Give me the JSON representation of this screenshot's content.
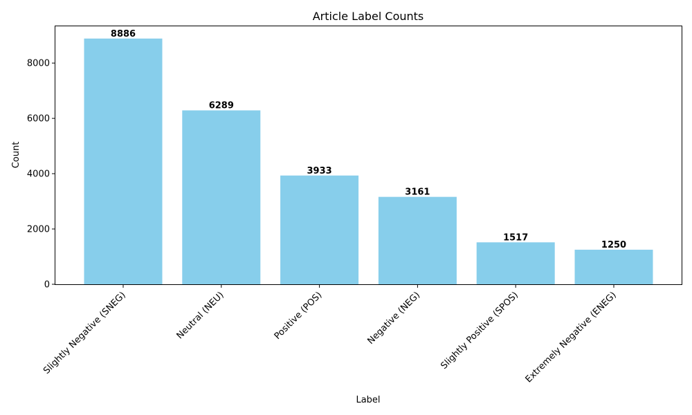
{
  "chart_data": {
    "type": "bar",
    "title": "Article Label Counts",
    "xlabel": "Label",
    "ylabel": "Count",
    "categories": [
      "Slightly Negative (SNEG)",
      "Neutral (NEU)",
      "Positive (POS)",
      "Negative (NEG)",
      "Slightly Positive (SPOS)",
      "Extremely Negative (ENEG)"
    ],
    "values": [
      8886,
      6289,
      3933,
      3161,
      1517,
      1250
    ],
    "data_labels": [
      "8886",
      "6289",
      "3933",
      "3161",
      "1517",
      "1250"
    ],
    "ylim": [
      0,
      9330
    ],
    "yticks": [
      0,
      2000,
      4000,
      6000,
      8000
    ],
    "ytick_labels": [
      "0",
      "2000",
      "4000",
      "6000",
      "8000"
    ],
    "bar_color": "#87ceeb",
    "grid": false,
    "legend": "none"
  }
}
